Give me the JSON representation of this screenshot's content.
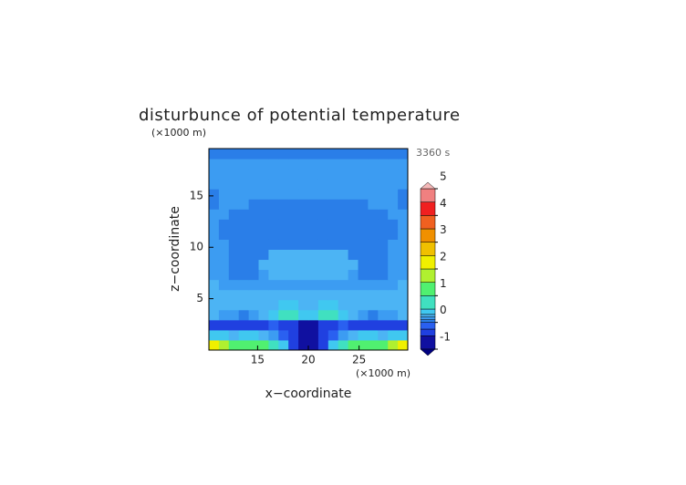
{
  "chart_data": {
    "type": "contour",
    "title": "disturbunce of potential temperature",
    "xlabel": "x−coordinate",
    "ylabel": "z−coordinate",
    "x_unit": "(×1000 m)",
    "y_unit": "(×1000 m)",
    "time_label": "3360 s",
    "xlim": [
      10.2,
      29.8
    ],
    "ylim": [
      0,
      19.6
    ],
    "xticks": [
      15,
      20,
      25
    ],
    "yticks": [
      5,
      10,
      15
    ],
    "z": [
      [
        2.3,
        1.6,
        1.0,
        1.2,
        1.3,
        1.0,
        0.6,
        0.3,
        -0.3,
        -0.8,
        -0.8,
        -0.3,
        0.3,
        0.6,
        1.0,
        1.3,
        1.2,
        1.0,
        1.6,
        2.3
      ],
      [
        0.4,
        0.3,
        0.2,
        0.3,
        0.3,
        0.2,
        0.1,
        -0.2,
        -0.5,
        -0.8,
        -0.8,
        -0.5,
        -0.2,
        0.1,
        0.2,
        0.3,
        0.3,
        0.2,
        0.3,
        0.4
      ],
      [
        -0.3,
        -0.4,
        -0.5,
        -0.5,
        -0.4,
        -0.3,
        -0.2,
        -0.3,
        -0.5,
        -0.6,
        -0.6,
        -0.5,
        -0.3,
        -0.2,
        -0.3,
        -0.4,
        -0.5,
        -0.5,
        -0.4,
        -0.3
      ],
      [
        0.2,
        0.15,
        0.1,
        0.05,
        0.1,
        0.2,
        0.3,
        0.6,
        0.8,
        0.3,
        0.3,
        0.8,
        0.6,
        0.3,
        0.2,
        0.1,
        0.05,
        0.1,
        0.15,
        0.2
      ],
      [
        0.25,
        0.25,
        0.2,
        0.2,
        0.2,
        0.2,
        0.25,
        0.3,
        0.3,
        0.25,
        0.25,
        0.3,
        0.3,
        0.25,
        0.2,
        0.2,
        0.2,
        0.2,
        0.25,
        0.25
      ],
      [
        0.2,
        0.2,
        0.2,
        0.2,
        0.2,
        0.2,
        0.2,
        0.2,
        0.2,
        0.2,
        0.2,
        0.2,
        0.2,
        0.2,
        0.2,
        0.2,
        0.2,
        0.2,
        0.2,
        0.2
      ],
      [
        0.2,
        0.15,
        0.15,
        0.15,
        0.15,
        0.15,
        0.15,
        0.15,
        0.15,
        0.15,
        0.15,
        0.15,
        0.15,
        0.15,
        0.15,
        0.15,
        0.15,
        0.15,
        0.15,
        0.2
      ],
      [
        0.15,
        0.15,
        0.05,
        0.05,
        0.05,
        0.15,
        0.25,
        0.25,
        0.25,
        0.25,
        0.25,
        0.25,
        0.25,
        0.25,
        0.15,
        0.05,
        0.05,
        0.05,
        0.15,
        0.15
      ],
      [
        0.15,
        0.15,
        0.05,
        0.05,
        0.05,
        0.25,
        0.25,
        0.25,
        0.25,
        0.25,
        0.25,
        0.25,
        0.25,
        0.25,
        0.25,
        0.05,
        0.05,
        0.05,
        0.15,
        0.15
      ],
      [
        0.15,
        0.15,
        0.05,
        0.05,
        0.05,
        0.05,
        0.25,
        0.25,
        0.25,
        0.25,
        0.25,
        0.25,
        0.25,
        0.25,
        0.05,
        0.05,
        0.05,
        0.05,
        0.15,
        0.15
      ],
      [
        0.15,
        0.15,
        0.05,
        0.05,
        0.05,
        0.05,
        0.05,
        0.05,
        0.05,
        0.05,
        0.05,
        0.05,
        0.05,
        0.05,
        0.05,
        0.05,
        0.05,
        0.05,
        0.15,
        0.15
      ],
      [
        0.15,
        0.05,
        0.05,
        0.05,
        0.05,
        0.05,
        0.05,
        0.05,
        0.05,
        0.05,
        0.05,
        0.05,
        0.05,
        0.05,
        0.05,
        0.05,
        0.05,
        0.05,
        0.05,
        0.15
      ],
      [
        0.15,
        0.05,
        0.05,
        0.05,
        0.05,
        0.05,
        0.05,
        0.05,
        0.05,
        0.05,
        0.05,
        0.05,
        0.05,
        0.05,
        0.05,
        0.05,
        0.05,
        0.05,
        0.05,
        0.15
      ],
      [
        0.15,
        0.15,
        0.05,
        0.05,
        0.05,
        0.05,
        0.05,
        0.05,
        0.05,
        0.05,
        0.05,
        0.05,
        0.05,
        0.05,
        0.05,
        0.05,
        0.05,
        0.05,
        0.15,
        0.15
      ],
      [
        0.05,
        0.15,
        0.15,
        0.15,
        0.05,
        0.05,
        0.05,
        0.05,
        0.05,
        0.05,
        0.05,
        0.05,
        0.05,
        0.05,
        0.05,
        0.05,
        0.15,
        0.15,
        0.15,
        0.05
      ],
      [
        0.05,
        0.15,
        0.15,
        0.15,
        0.15,
        0.15,
        0.15,
        0.15,
        0.15,
        0.15,
        0.15,
        0.15,
        0.15,
        0.15,
        0.15,
        0.15,
        0.15,
        0.15,
        0.15,
        0.05
      ],
      [
        0.1,
        0.15,
        0.15,
        0.15,
        0.15,
        0.15,
        0.15,
        0.15,
        0.15,
        0.15,
        0.15,
        0.15,
        0.15,
        0.15,
        0.15,
        0.15,
        0.15,
        0.15,
        0.15,
        0.1
      ],
      [
        0.15,
        0.15,
        0.15,
        0.15,
        0.15,
        0.15,
        0.15,
        0.15,
        0.15,
        0.15,
        0.15,
        0.15,
        0.15,
        0.15,
        0.15,
        0.15,
        0.15,
        0.15,
        0.15,
        0.15
      ],
      [
        0.15,
        0.15,
        0.15,
        0.15,
        0.15,
        0.15,
        0.15,
        0.15,
        0.15,
        0.15,
        0.15,
        0.15,
        0.15,
        0.15,
        0.15,
        0.15,
        0.15,
        0.15,
        0.15,
        0.15
      ],
      [
        0.05,
        0.05,
        0.05,
        0.05,
        0.05,
        0.05,
        0.05,
        0.05,
        0.05,
        0.05,
        0.05,
        0.05,
        0.05,
        0.05,
        0.05,
        0.05,
        0.05,
        0.05,
        0.05,
        0.05
      ]
    ],
    "colorbar": {
      "levels": [
        -1,
        -0.5,
        -0.25,
        0,
        0.1,
        0.2,
        0.3,
        0.5,
        1,
        1.5,
        2,
        2.5,
        3,
        3.5,
        4,
        4.5,
        5
      ],
      "colors": [
        "#1010a0",
        "#2040e0",
        "#2a60f0",
        "#2a7ee8",
        "#3c9cf2",
        "#4cb4f4",
        "#40c8f0",
        "#40e0c0",
        "#50f070",
        "#b0f030",
        "#f0f000",
        "#f0c000",
        "#f09000",
        "#f06020",
        "#f02020",
        "#f08080"
      ],
      "under_color": "#000080",
      "over_color": "#f4b8b8",
      "ticks": [
        -1,
        0,
        1,
        2,
        3,
        4,
        5
      ]
    }
  }
}
